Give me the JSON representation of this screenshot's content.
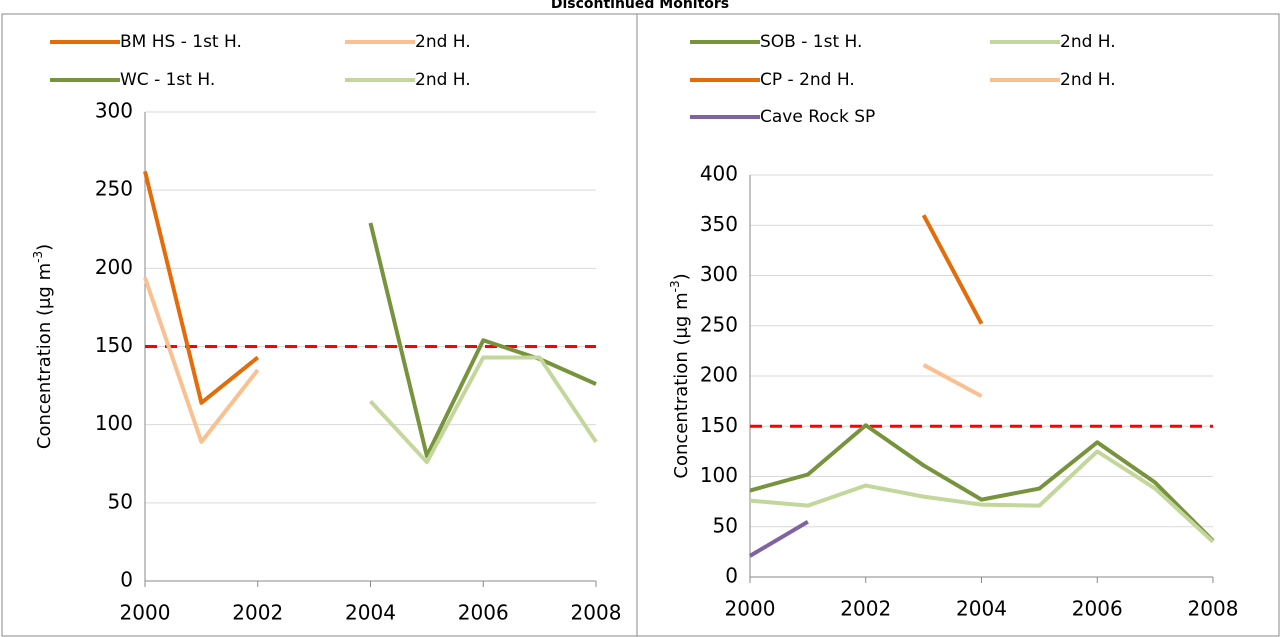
{
  "title": "Discontinued Monitors",
  "chart_data": [
    {
      "type": "line",
      "x": [
        2000,
        2001,
        2002,
        2003,
        2004,
        2005,
        2006,
        2007,
        2008
      ],
      "xlim": [
        2000,
        2008
      ],
      "xticks": [
        2000,
        2002,
        2004,
        2006,
        2008
      ],
      "ylim": [
        0,
        300
      ],
      "yticks": [
        0,
        50,
        100,
        150,
        200,
        250,
        300
      ],
      "y_label": "Concentration (μg m",
      "y_label_sup": "-3",
      "y_label_end": ")",
      "grid": true,
      "reference_line": {
        "value": 150,
        "color": "#ff0000"
      },
      "series": [
        {
          "name": "BM HS - 1st H.",
          "color": "#e46c0a",
          "values": [
            262,
            114,
            143,
            null,
            null,
            null,
            null,
            null,
            null
          ]
        },
        {
          "name": "2nd H.",
          "color": "#fac090",
          "values": [
            194,
            89,
            135,
            null,
            null,
            null,
            null,
            null,
            null
          ]
        },
        {
          "name": "WC - 1st H.",
          "color": "#77933c",
          "values": [
            null,
            null,
            null,
            null,
            229,
            80,
            154,
            142,
            126
          ]
        },
        {
          "name": "2nd H.",
          "color": "#c3d69b",
          "values": [
            null,
            null,
            null,
            null,
            115,
            76,
            143,
            143,
            89
          ]
        }
      ]
    },
    {
      "type": "line",
      "x": [
        2000,
        2001,
        2002,
        2003,
        2004,
        2005,
        2006,
        2007,
        2008
      ],
      "xlim": [
        2000,
        2008
      ],
      "xticks": [
        2000,
        2002,
        2004,
        2006,
        2008
      ],
      "ylim": [
        0,
        400
      ],
      "yticks": [
        0,
        50,
        100,
        150,
        200,
        250,
        300,
        350,
        400
      ],
      "y_label": "Concentration (μg m",
      "y_label_sup": "-3",
      "y_label_end": ")",
      "grid": true,
      "reference_line": {
        "value": 150,
        "color": "#ff0000"
      },
      "series": [
        {
          "name": "SOB - 1st H.",
          "color": "#77933c",
          "values": [
            86,
            102,
            151,
            111,
            77,
            88,
            134,
            94,
            36
          ]
        },
        {
          "name": "2nd H.",
          "color": "#c3d69b",
          "values": [
            76,
            71,
            91,
            80,
            72,
            71,
            125,
            88,
            35
          ]
        },
        {
          "name": "CP - 2nd H.",
          "color": "#e46c0a",
          "values": [
            null,
            null,
            null,
            360,
            252,
            null,
            null,
            null,
            null
          ]
        },
        {
          "name": "2nd H.",
          "color": "#fac090",
          "values": [
            null,
            null,
            null,
            211,
            180,
            null,
            null,
            null,
            null
          ]
        },
        {
          "name": "Cave Rock SP",
          "color": "#8064a2",
          "values": [
            21,
            55,
            null,
            null,
            null,
            null,
            null,
            null,
            null
          ]
        }
      ]
    }
  ]
}
